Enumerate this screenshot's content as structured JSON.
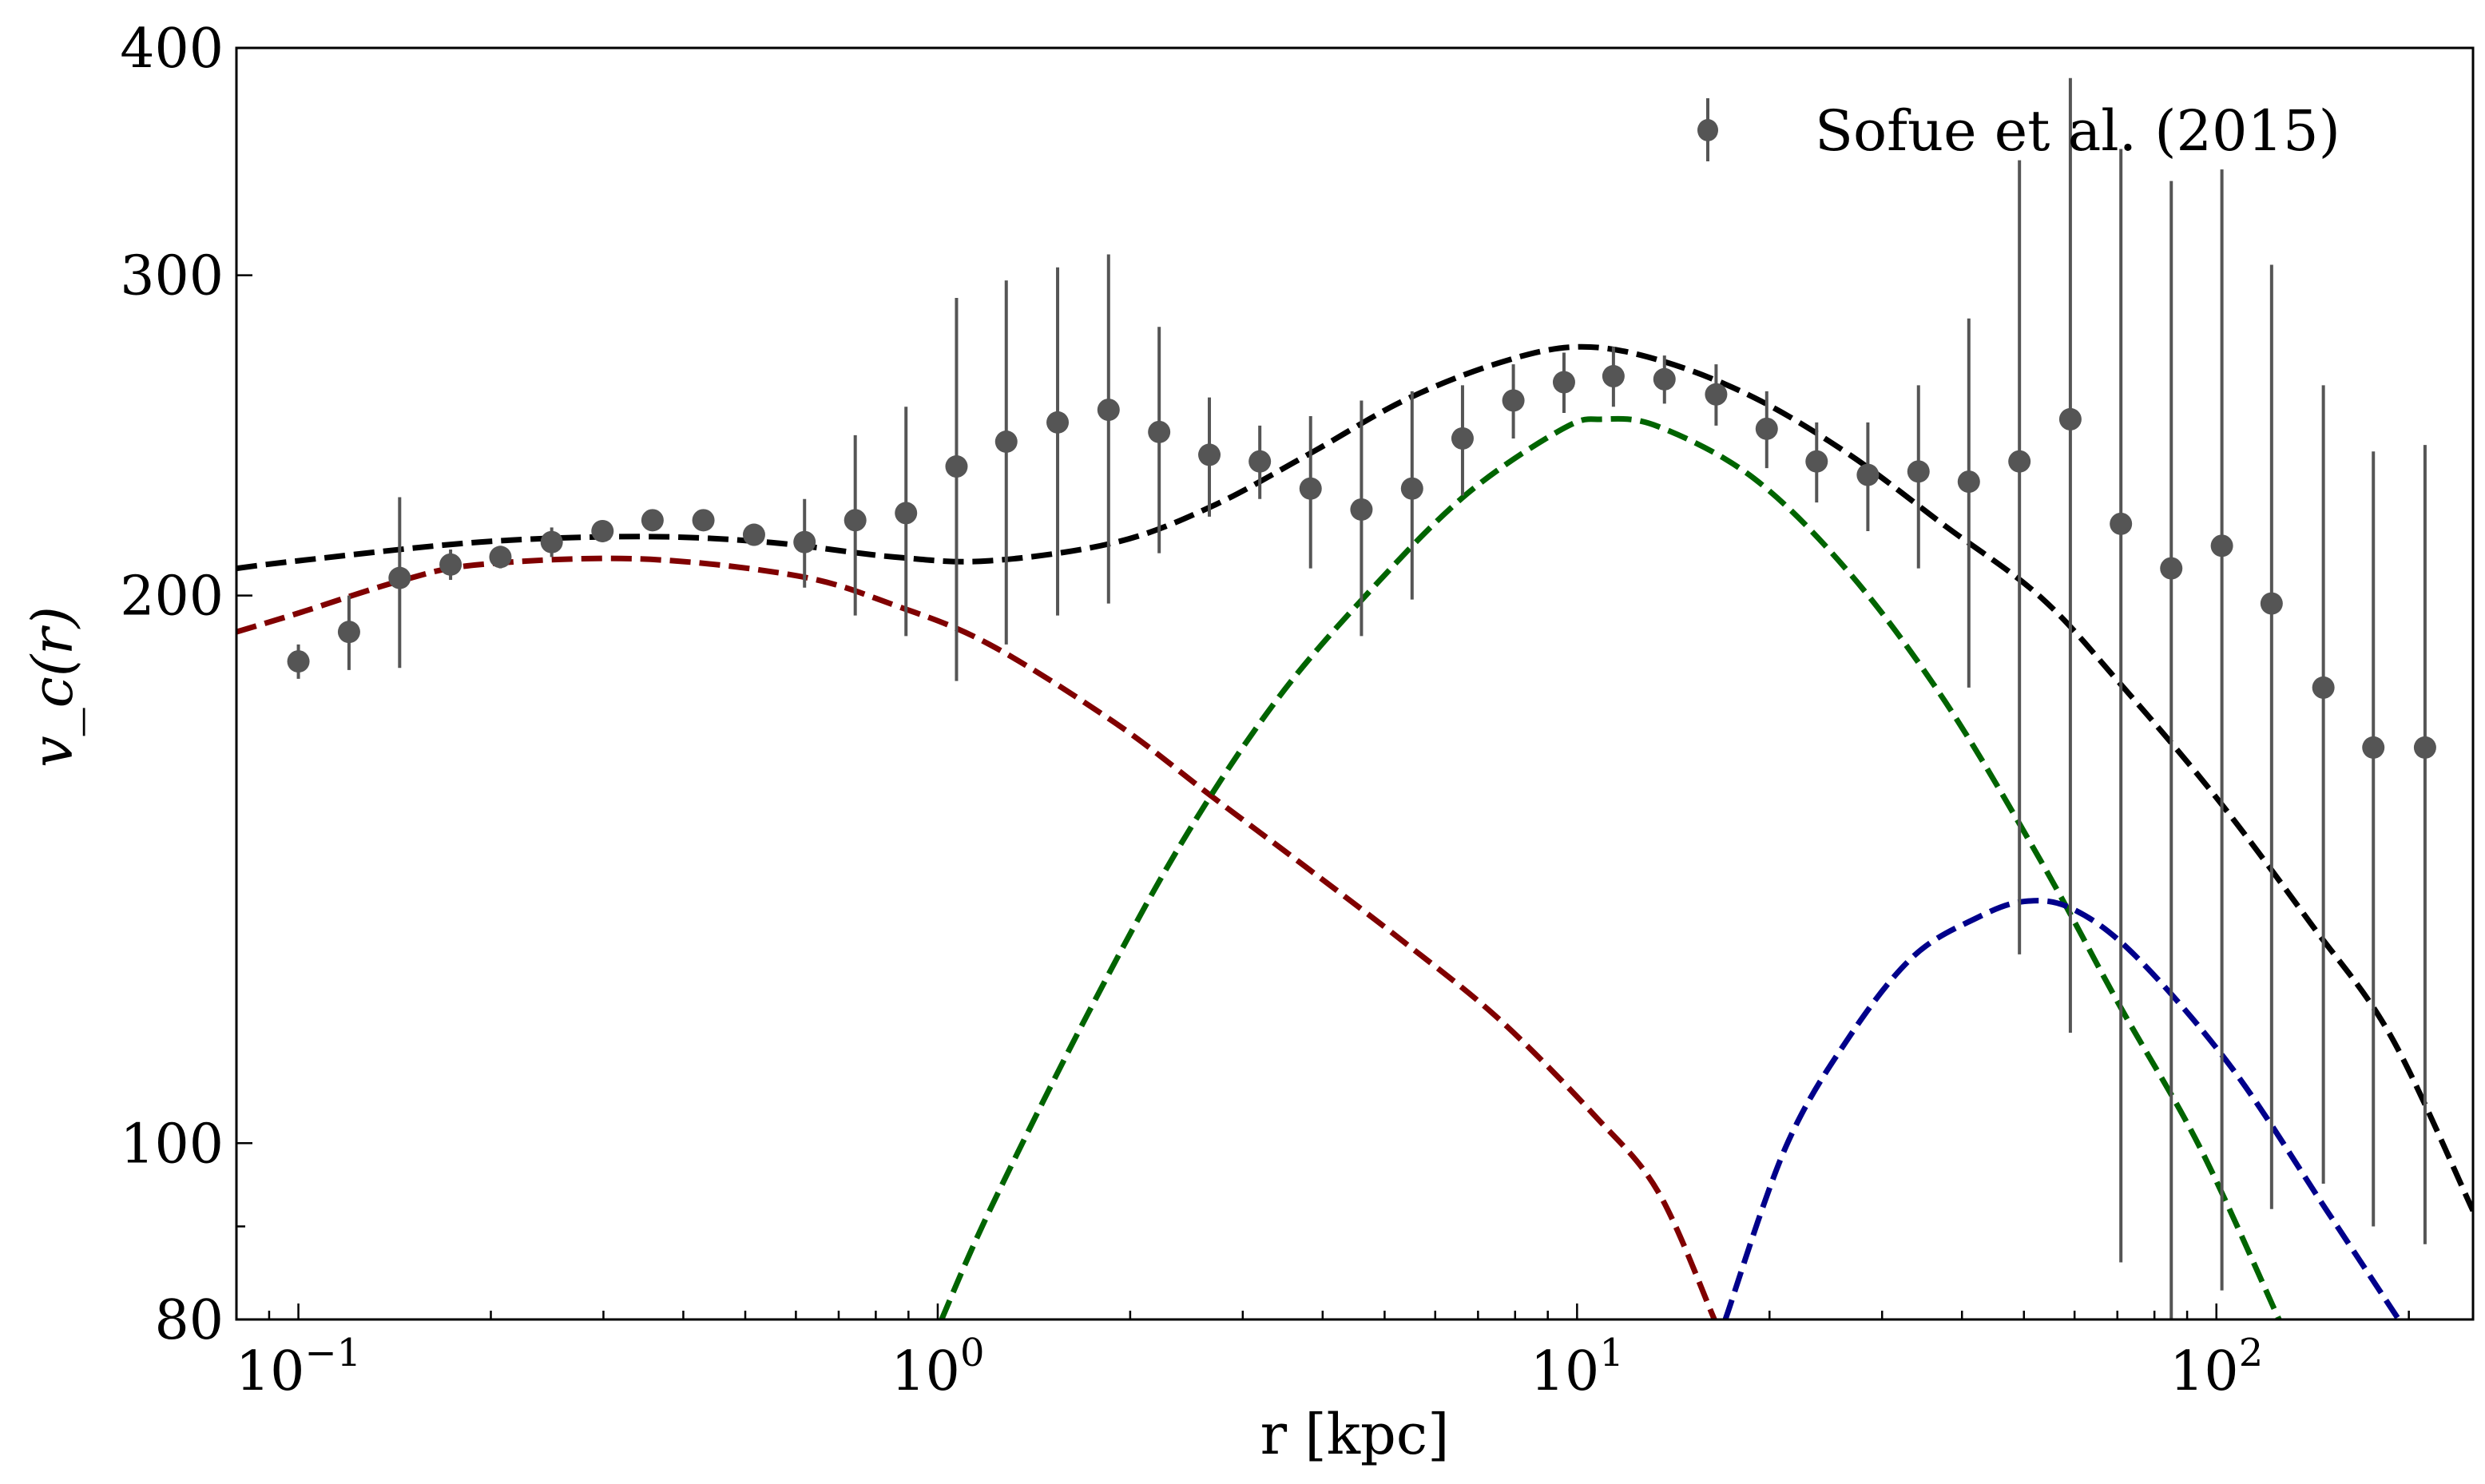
{
  "chart_data": {
    "type": "scatter",
    "xlabel": "r [kpc]",
    "ylabel": "v_c(r)",
    "xscale": "log",
    "yscale": "log",
    "xlim": [
      0.08,
      252
    ],
    "ylim": [
      80,
      400
    ],
    "x_ticks": [
      {
        "value": 0.1,
        "base": "10",
        "exp": "−1"
      },
      {
        "value": 1,
        "base": "10",
        "exp": "0"
      },
      {
        "value": 10,
        "base": "10",
        "exp": "1"
      },
      {
        "value": 100,
        "base": "10",
        "exp": "2"
      }
    ],
    "y_ticks": [
      {
        "value": 80,
        "label": "80"
      },
      {
        "value": 100,
        "label": "100"
      },
      {
        "value": 200,
        "label": "200"
      },
      {
        "value": 300,
        "label": "300"
      },
      {
        "value": 400,
        "label": "400"
      }
    ],
    "grid": false,
    "legend": {
      "position": "top-right",
      "entries": [
        "Sofue et al. (2015)"
      ]
    },
    "points": {
      "name": "Sofue et al. (2015)",
      "color": "#555555",
      "x": [
        0.1,
        0.12,
        0.144,
        0.173,
        0.207,
        0.249,
        0.299,
        0.358,
        0.43,
        0.516,
        0.619,
        0.743,
        0.892,
        1.07,
        1.28,
        1.54,
        1.85,
        2.22,
        2.66,
        3.19,
        3.83,
        4.6,
        5.52,
        6.62,
        7.95,
        9.54,
        11.4,
        13.7,
        16.5,
        19.8,
        23.7,
        28.5,
        34.2,
        41.0,
        49.2,
        59.1,
        70.9,
        85.0,
        102,
        122,
        147,
        176,
        212
      ],
      "y": [
        184,
        191,
        204.5,
        208,
        210,
        214,
        217,
        220,
        220,
        216,
        214,
        220,
        222,
        235.5,
        243,
        249,
        253,
        246,
        239,
        237,
        229,
        223,
        229,
        244,
        256,
        262,
        264,
        263,
        258,
        247,
        237,
        233,
        234,
        231,
        237,
        250,
        219,
        207,
        213,
        198,
        178,
        165,
        165
      ],
      "yerr": [
        4,
        9,
        22,
        4,
        3,
        4,
        3,
        2,
        2,
        3,
        12,
        25,
        32,
        56,
        55,
        54,
        55,
        35,
        18,
        11,
        22,
        33,
        30,
        17,
        12,
        10,
        10,
        8,
        10,
        12,
        12,
        16,
        27,
        53,
        110,
        135,
        133,
        131,
        130,
        106,
        83,
        75,
        77
      ]
    },
    "curves": [
      {
        "color": "#000000",
        "style": "dashed",
        "x": [
          0.08,
          0.1,
          0.192,
          0.341,
          0.54,
          0.855,
          1.205,
          1.905,
          2.69,
          3.79,
          5.36,
          7.55,
          10.05,
          13.4,
          18.9,
          26.7,
          37.6,
          53.1,
          70.6,
          99.8,
          140.6,
          187.5,
          252
        ],
        "y": [
          207,
          209,
          214,
          215.5,
          214,
          210,
          209,
          214,
          224,
          239,
          256,
          268.5,
          274,
          269.5,
          257,
          239,
          218.5,
          199.6,
          179,
          155,
          132,
          114.5,
          91.8
        ]
      },
      {
        "color": "#800000",
        "style": "dashed",
        "x": [
          0.08,
          0.1,
          0.144,
          0.192,
          0.341,
          0.605,
          0.855,
          1.205,
          1.905,
          2.69,
          3.79,
          5.36,
          7.55,
          10.64,
          13.4,
          16.4
        ],
        "y": [
          191,
          195.6,
          203.7,
          208,
          209.5,
          205,
          197.6,
          188,
          170,
          155,
          141.6,
          129,
          117,
          103.6,
          94,
          80
        ]
      },
      {
        "color": "#006400",
        "style": "dashed",
        "x": [
          1.014,
          1.205,
          1.7,
          2.4,
          3.38,
          4.77,
          6.73,
          9.5,
          10.96,
          13.4,
          18.9,
          26.7,
          37.6,
          53.1,
          70.6,
          94.2,
          125.3
        ],
        "y": [
          80,
          91.8,
          117,
          146,
          175,
          201.6,
          227.5,
          247,
          250,
          247.7,
          232,
          205.7,
          175,
          143,
          119,
          99.5,
          80
        ]
      },
      {
        "color": "#00008b",
        "style": "dashed",
        "x": [
          17.06,
          21.2,
          26.7,
          33.6,
          42.2,
          50.1,
          59.6,
          74.8,
          105.7,
          148.9,
          192.8
        ],
        "y": [
          80,
          99.5,
          114.5,
          126.7,
          133,
          135.8,
          134.5,
          126.7,
          110,
          91.8,
          80
        ]
      }
    ]
  }
}
